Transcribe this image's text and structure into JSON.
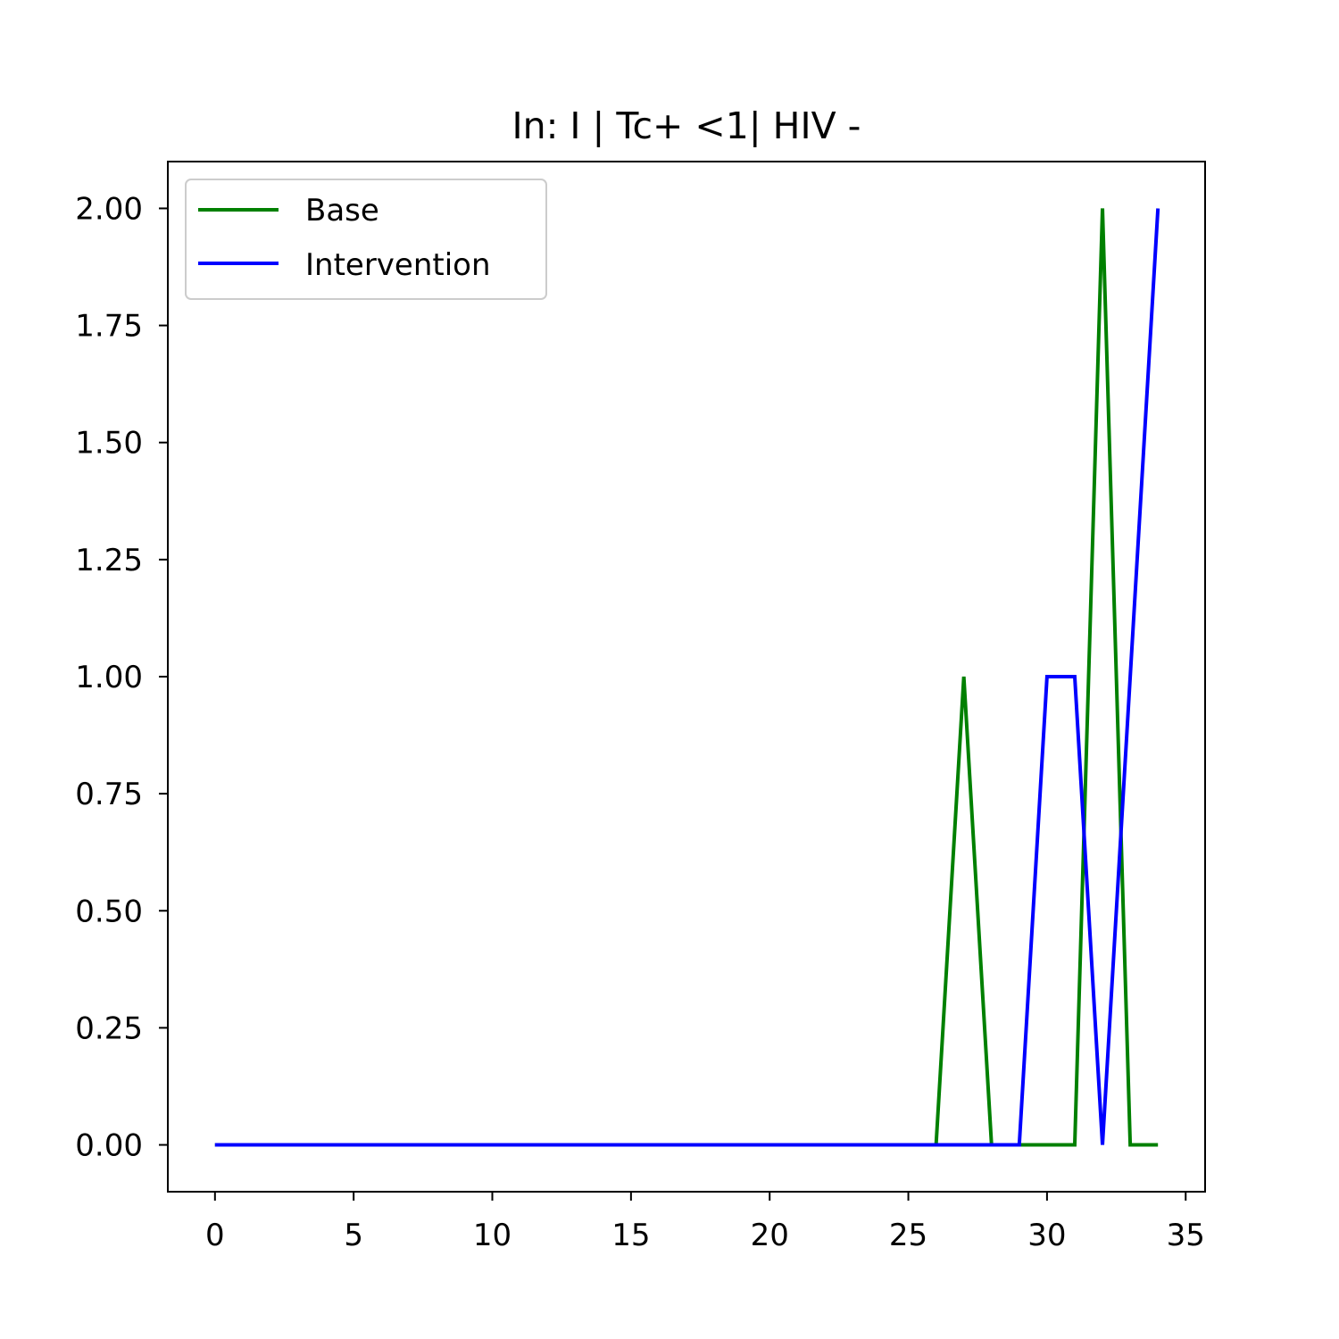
{
  "chart_data": {
    "type": "line",
    "title": "In: I | Tc+ <1| HIV -",
    "xlabel": "",
    "ylabel": "",
    "xlim": [
      -1.7,
      35.7
    ],
    "ylim": [
      -0.1,
      2.1
    ],
    "xticks": [
      0,
      5,
      10,
      15,
      20,
      25,
      30,
      35
    ],
    "yticks": [
      0.0,
      0.25,
      0.5,
      0.75,
      1.0,
      1.25,
      1.5,
      1.75,
      2.0
    ],
    "ytick_labels": [
      "0.00",
      "0.25",
      "0.50",
      "0.75",
      "1.00",
      "1.25",
      "1.50",
      "1.75",
      "2.00"
    ],
    "grid": false,
    "legend_position": "upper-left",
    "series": [
      {
        "name": "Base",
        "color": "#008000",
        "x": [
          0,
          1,
          2,
          3,
          4,
          5,
          6,
          7,
          8,
          9,
          10,
          11,
          12,
          13,
          14,
          15,
          16,
          17,
          18,
          19,
          20,
          21,
          22,
          23,
          24,
          25,
          26,
          27,
          28,
          29,
          30,
          31,
          32,
          33,
          34
        ],
        "y": [
          0,
          0,
          0,
          0,
          0,
          0,
          0,
          0,
          0,
          0,
          0,
          0,
          0,
          0,
          0,
          0,
          0,
          0,
          0,
          0,
          0,
          0,
          0,
          0,
          0,
          0,
          0,
          1,
          0,
          0,
          0,
          0,
          2,
          0,
          0
        ]
      },
      {
        "name": "Intervention",
        "color": "#0000ff",
        "x": [
          0,
          1,
          2,
          3,
          4,
          5,
          6,
          7,
          8,
          9,
          10,
          11,
          12,
          13,
          14,
          15,
          16,
          17,
          18,
          19,
          20,
          21,
          22,
          23,
          24,
          25,
          26,
          27,
          28,
          29,
          30,
          31,
          32,
          33,
          34
        ],
        "y": [
          0,
          0,
          0,
          0,
          0,
          0,
          0,
          0,
          0,
          0,
          0,
          0,
          0,
          0,
          0,
          0,
          0,
          0,
          0,
          0,
          0,
          0,
          0,
          0,
          0,
          0,
          0,
          0,
          0,
          0,
          1,
          1,
          0,
          1,
          2
        ]
      }
    ]
  }
}
